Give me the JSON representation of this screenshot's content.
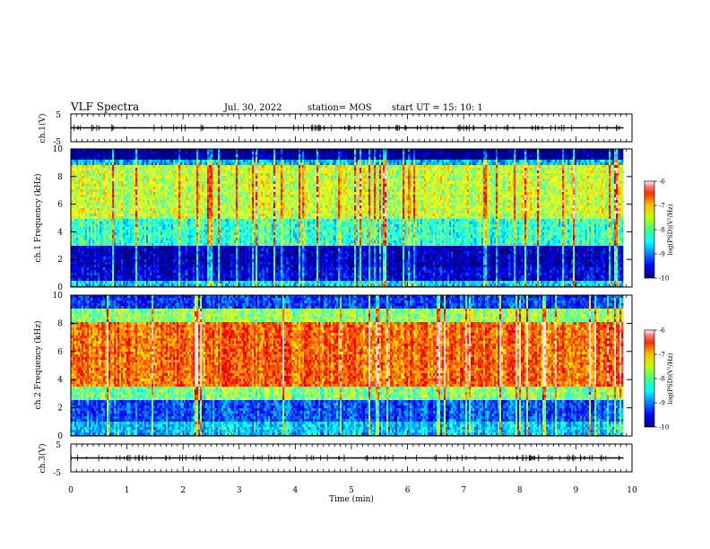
{
  "header": {
    "title": "VLF Spectra",
    "date": "Jul. 30, 2022",
    "station": "station= MOS",
    "start": "start  UT =   15: 10: 1"
  },
  "colors": {
    "background": "#ffffff",
    "axis": "#000000"
  },
  "chart_data": [
    {
      "type": "line",
      "panel": "ch1-waveform",
      "ylabel": "ch.1(V)",
      "ylim": [
        -5,
        5
      ],
      "yticks": [
        "5",
        "-5"
      ],
      "xlim": [
        0,
        10
      ],
      "series": [
        {
          "x": [
            0,
            9.85
          ],
          "values": [
            0,
            0
          ]
        }
      ]
    },
    {
      "type": "heatmap",
      "panel": "ch1-spectrogram",
      "ylabel": "ch.1 Frequency (kHz)",
      "ylim": [
        0,
        10
      ],
      "yticks": [
        "0",
        "2",
        "4",
        "6",
        "8",
        "10"
      ],
      "xlim": [
        0,
        10
      ],
      "data_x_end": 9.85,
      "colorbar": {
        "label": "log(PSD)(V²/Hz)",
        "range": [
          -10,
          -6
        ],
        "ticks": [
          "-6",
          "-7",
          "-8",
          "-9",
          "-10"
        ],
        "colormap": "jet"
      },
      "bands": [
        {
          "f_range": [
            0,
            0.5
          ],
          "level": -8.6
        },
        {
          "f_range": [
            0.5,
            1.5
          ],
          "level": -9.6
        },
        {
          "f_range": [
            1.5,
            3
          ],
          "level": -9.8
        },
        {
          "f_range": [
            3,
            5
          ],
          "level": -8.3
        },
        {
          "f_range": [
            5,
            8.8
          ],
          "level": -7.7
        },
        {
          "f_range": [
            8.8,
            9.3
          ],
          "level": -8.8
        },
        {
          "f_range": [
            9.3,
            10
          ],
          "level": -10
        }
      ]
    },
    {
      "type": "heatmap",
      "panel": "ch2-spectrogram",
      "ylabel": "ch.2 Frequency (kHz)",
      "ylim": [
        0,
        10
      ],
      "yticks": [
        "0",
        "2",
        "4",
        "6",
        "8",
        "10"
      ],
      "xlim": [
        0,
        10
      ],
      "data_x_end": 9.85,
      "colorbar": {
        "label": "log(PSD)(V²/Hz)",
        "range": [
          -10,
          -6
        ],
        "ticks": [
          "-6",
          "-7",
          "-8",
          "-9",
          "-10"
        ],
        "colormap": "jet"
      },
      "bands": [
        {
          "f_range": [
            0,
            1
          ],
          "level": -8.7
        },
        {
          "f_range": [
            1,
            2.5
          ],
          "level": -9.2
        },
        {
          "f_range": [
            2.5,
            3.5
          ],
          "level": -8.0
        },
        {
          "f_range": [
            3.5,
            8
          ],
          "level": -6.9
        },
        {
          "f_range": [
            8,
            9
          ],
          "level": -7.9
        },
        {
          "f_range": [
            9,
            10
          ],
          "level": -9.3
        }
      ]
    },
    {
      "type": "line",
      "panel": "ch3-waveform",
      "ylabel": "ch.3(V)",
      "ylim": [
        -5,
        5
      ],
      "yticks": [
        "5",
        "-5"
      ],
      "xlim": [
        0,
        10
      ],
      "xlabel": "Time  (min)",
      "xticks": [
        "0",
        "1",
        "2",
        "3",
        "4",
        "5",
        "6",
        "7",
        "8",
        "9",
        "10"
      ],
      "series": [
        {
          "x": [
            0,
            9.85
          ],
          "values": [
            0,
            0
          ]
        }
      ]
    }
  ]
}
